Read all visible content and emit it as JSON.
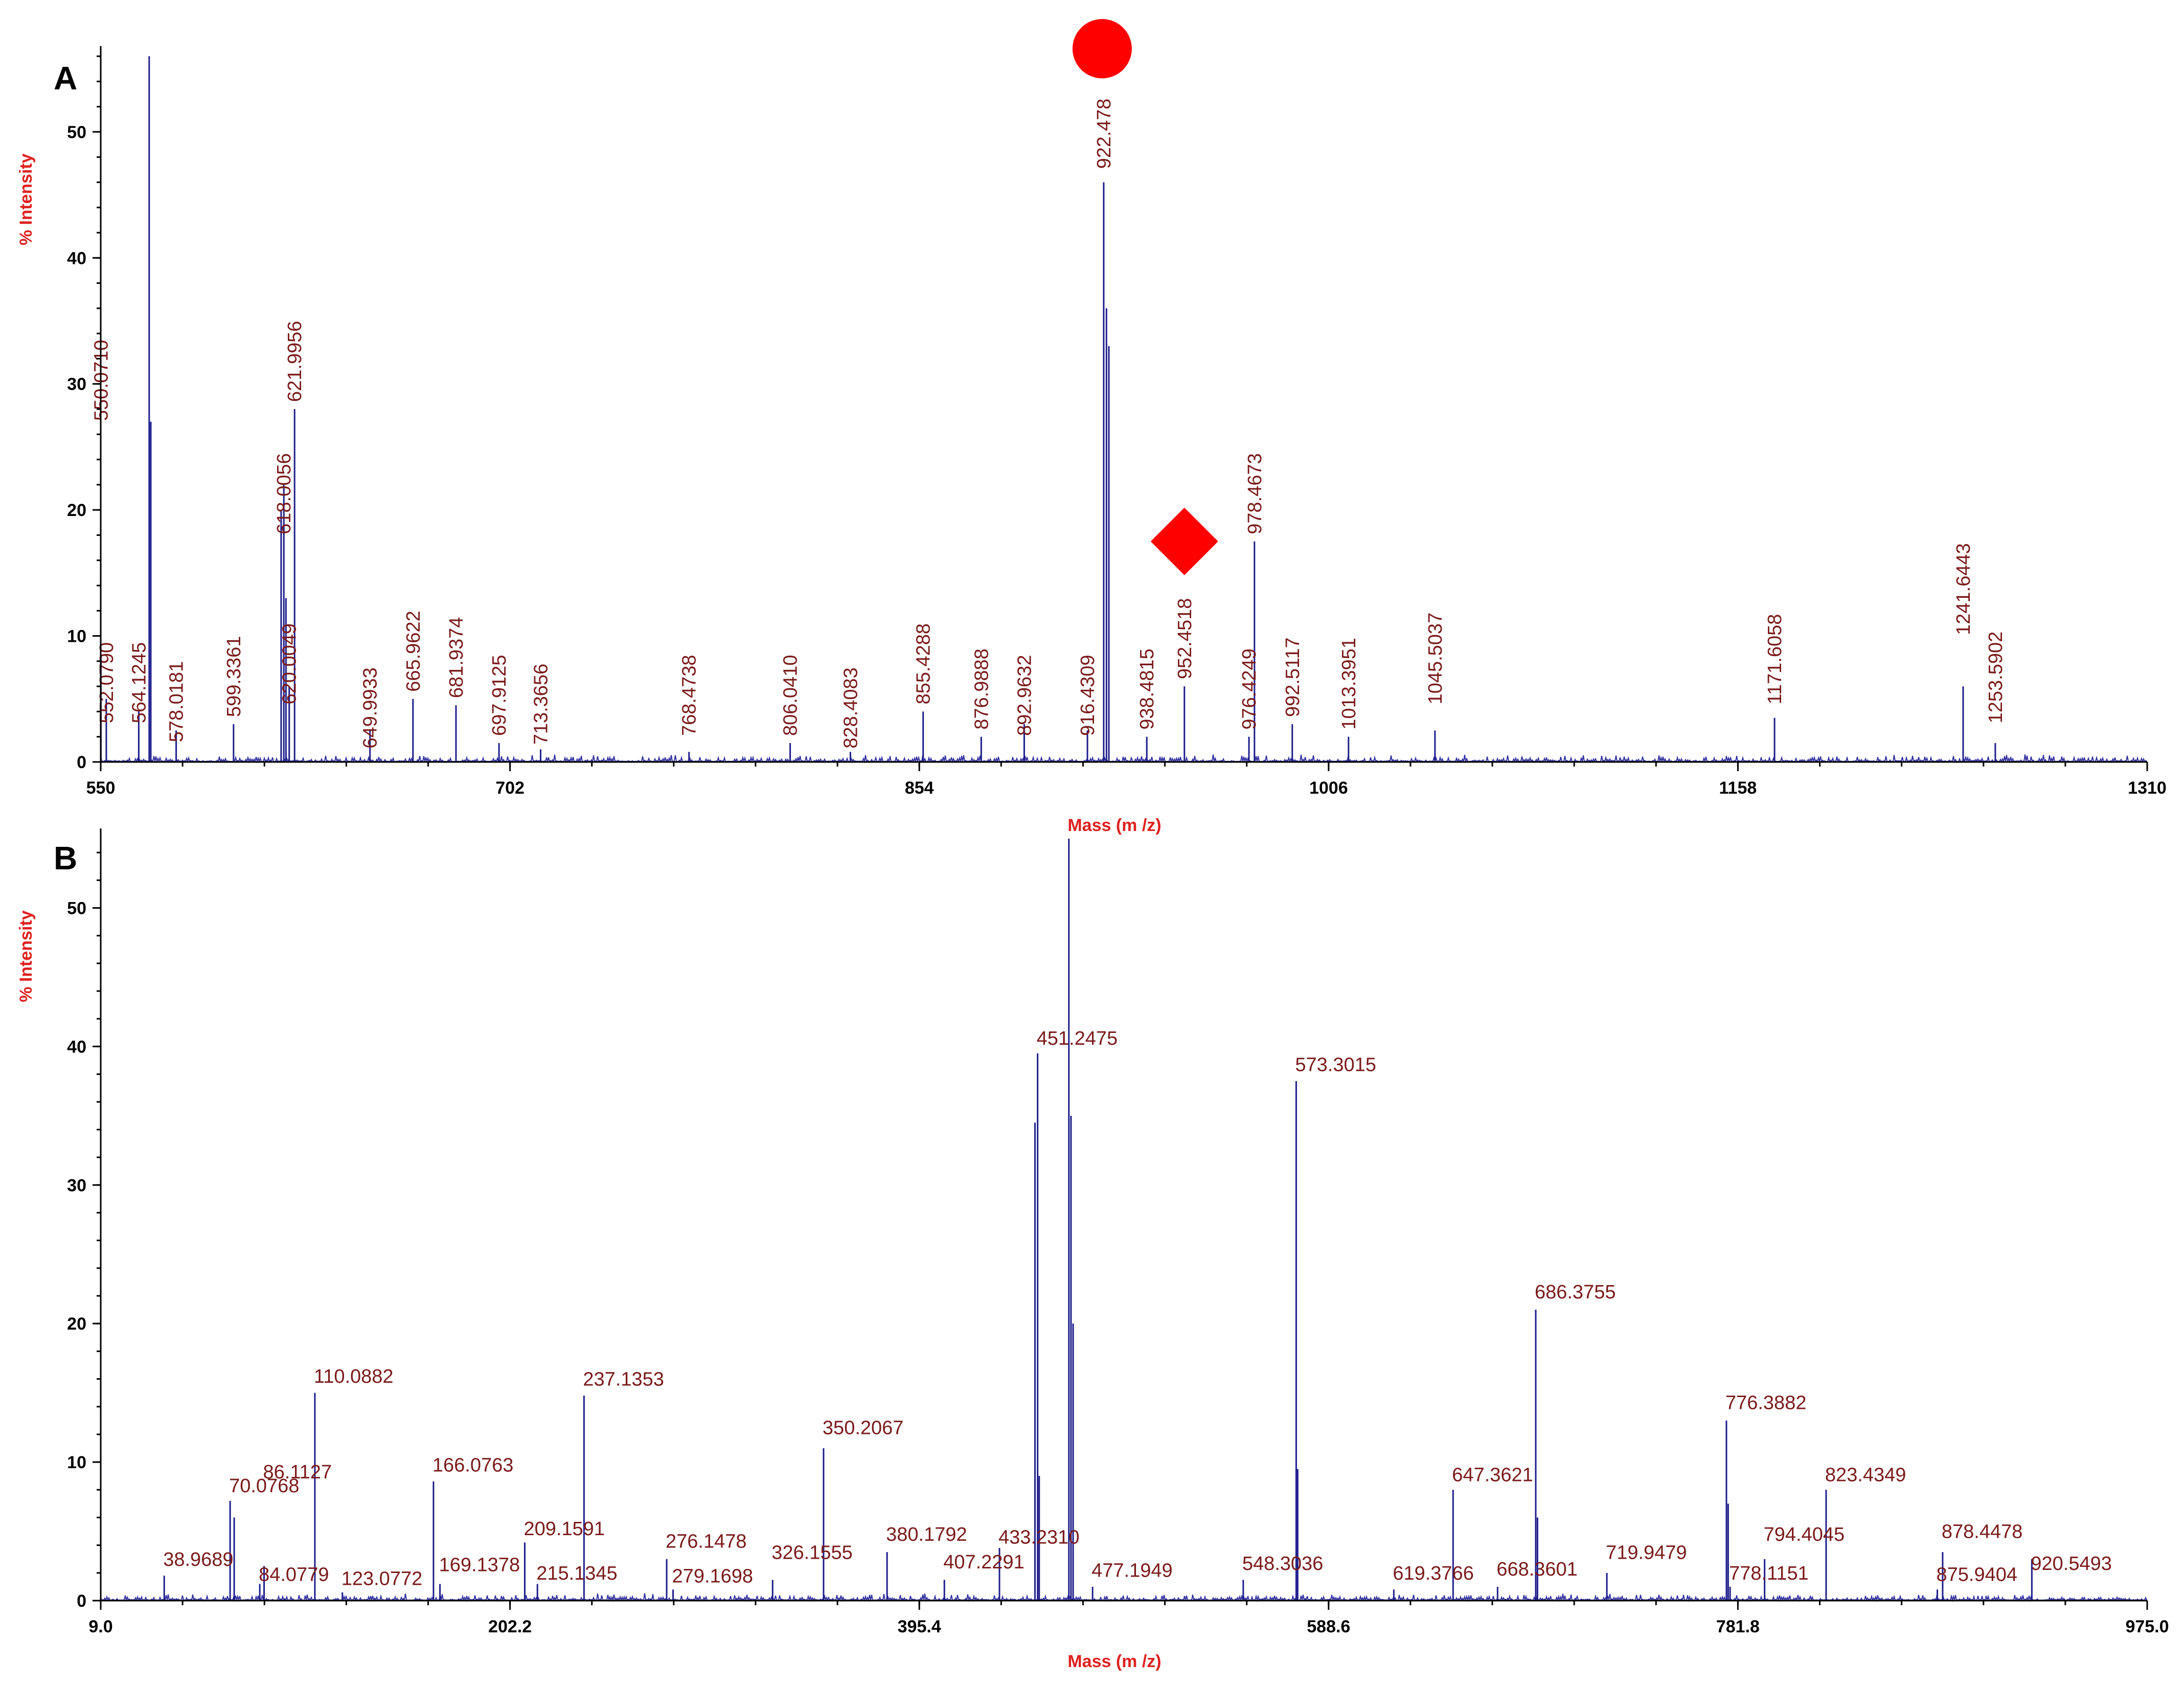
{
  "chart_data": [
    {
      "type": "line",
      "panel": "A",
      "xlabel": "Mass (m /z)",
      "ylabel": "% Intensity",
      "xlim": [
        550,
        1310
      ],
      "ylim": [
        0,
        56
      ],
      "xticks": [
        "550",
        "702",
        "854",
        "1006",
        "1158",
        "1310"
      ],
      "yticks": [
        "0",
        "10",
        "20",
        "30",
        "40",
        "50"
      ],
      "label_orientation": "vertical",
      "markers": [
        {
          "shape": "circle",
          "color": "#ff0000",
          "at_mz": 922.478,
          "y": 56.6
        },
        {
          "shape": "diamond",
          "color": "#ff0000",
          "at_mz": 952.4518,
          "y": 17.5
        }
      ],
      "peaks": [
        {
          "mz": 550.071,
          "y": 8.5,
          "label": "550.0710",
          "label_y": 26.5
        },
        {
          "mz": 552.079,
          "y": 5.0,
          "label": "552.0790",
          "label_y": 2.5
        },
        {
          "mz": 568.0,
          "y": 56.0,
          "label": null
        },
        {
          "mz": 568.6,
          "y": 27.0,
          "label": null
        },
        {
          "mz": 564.1245,
          "y": 4.0,
          "label": "564.1245",
          "label_y": 2.5
        },
        {
          "mz": 578.0181,
          "y": 2.5,
          "label": "578.0181",
          "label_y": 1.0
        },
        {
          "mz": 599.3361,
          "y": 3.0,
          "label": "599.3361",
          "label_y": 3.0
        },
        {
          "mz": 617.0,
          "y": 20.0,
          "label": null
        },
        {
          "mz": 618.0056,
          "y": 22.0,
          "label": "618.0056",
          "label_y": 17.5
        },
        {
          "mz": 618.8,
          "y": 13.0,
          "label": null
        },
        {
          "mz": 620.0049,
          "y": 6.0,
          "label": "620.0049",
          "label_y": 4.0
        },
        {
          "mz": 621.9956,
          "y": 28.0,
          "label": "621.9956",
          "label_y": 28.0
        },
        {
          "mz": 649.9933,
          "y": 2.5,
          "label": "649.9933",
          "label_y": 0.5
        },
        {
          "mz": 665.9622,
          "y": 5.0,
          "label": "665.9622",
          "label_y": 5.0
        },
        {
          "mz": 681.9374,
          "y": 4.5,
          "label": "681.9374",
          "label_y": 4.5
        },
        {
          "mz": 697.9125,
          "y": 1.5,
          "label": "697.9125",
          "label_y": 1.5
        },
        {
          "mz": 713.3656,
          "y": 1.0,
          "label": "713.3656",
          "label_y": 0.8
        },
        {
          "mz": 768.4738,
          "y": 0.8,
          "label": "768.4738",
          "label_y": 1.5
        },
        {
          "mz": 806.041,
          "y": 1.5,
          "label": "806.0410",
          "label_y": 1.5
        },
        {
          "mz": 828.4083,
          "y": 0.8,
          "label": "828.4083",
          "label_y": 0.5
        },
        {
          "mz": 855.4288,
          "y": 4.0,
          "label": "855.4288",
          "label_y": 4.0
        },
        {
          "mz": 876.9888,
          "y": 2.0,
          "label": "876.9888",
          "label_y": 2.0
        },
        {
          "mz": 892.9632,
          "y": 3.0,
          "label": "892.9632",
          "label_y": 1.5
        },
        {
          "mz": 916.4309,
          "y": 2.5,
          "label": "916.4309",
          "label_y": 1.5
        },
        {
          "mz": 922.478,
          "y": 46.0,
          "label": "922.478",
          "label_y": 46.5
        },
        {
          "mz": 923.5,
          "y": 36.0,
          "label": null
        },
        {
          "mz": 924.4,
          "y": 33.0,
          "label": null
        },
        {
          "mz": 938.4815,
          "y": 2.0,
          "label": "938.4815",
          "label_y": 2.0
        },
        {
          "mz": 952.4518,
          "y": 6.0,
          "label": "952.4518",
          "label_y": 6.0
        },
        {
          "mz": 976.4249,
          "y": 2.0,
          "label": "976.4249",
          "label_y": 2.0
        },
        {
          "mz": 978.4673,
          "y": 17.5,
          "label": "978.4673",
          "label_y": 17.5
        },
        {
          "mz": 992.5117,
          "y": 3.0,
          "label": "992.5117",
          "label_y": 3.0
        },
        {
          "mz": 1013.3951,
          "y": 2.0,
          "label": "1013.3951",
          "label_y": 2.0
        },
        {
          "mz": 1045.5037,
          "y": 2.5,
          "label": "1045.5037",
          "label_y": 4.0
        },
        {
          "mz": 1171.6058,
          "y": 3.5,
          "label": "1171.6058",
          "label_y": 4.0
        },
        {
          "mz": 1241.6443,
          "y": 6.0,
          "label": "1241.6443",
          "label_y": 9.5
        },
        {
          "mz": 1253.5902,
          "y": 1.5,
          "label": "1253.5902",
          "label_y": 2.5
        }
      ]
    },
    {
      "type": "line",
      "panel": "B",
      "xlabel": "Mass (m /z)",
      "ylabel": "% Intensity",
      "xlim": [
        9.0,
        975.0
      ],
      "ylim": [
        0,
        55
      ],
      "xticks": [
        "9.0",
        "202.2",
        "395.4",
        "588.6",
        "781.8",
        "975.0"
      ],
      "yticks": [
        "0",
        "10",
        "20",
        "30",
        "40",
        "50"
      ],
      "label_orientation": "horizontal",
      "peaks": [
        {
          "mz": 38.9689,
          "y": 1.8,
          "label": "38.9689",
          "label_y": 2.0
        },
        {
          "mz": 70.0768,
          "y": 7.2,
          "label": "70.0768",
          "label_y": 7.3
        },
        {
          "mz": 72.0,
          "y": 6.0,
          "label": null
        },
        {
          "mz": 84.0779,
          "y": 1.2,
          "label": "84.0779",
          "label_y": 0.9
        },
        {
          "mz": 86.1127,
          "y": 2.5,
          "label": "86.1127",
          "label_y": 8.3
        },
        {
          "mz": 110.0882,
          "y": 15.0,
          "label": "110.0882",
          "label_y": 15.2
        },
        {
          "mz": 123.0772,
          "y": 0.6,
          "label": "123.0772",
          "label_y": 0.6
        },
        {
          "mz": 166.0763,
          "y": 8.6,
          "label": "166.0763",
          "label_y": 8.8
        },
        {
          "mz": 169.1378,
          "y": 1.2,
          "label": "169.1378",
          "label_y": 1.6
        },
        {
          "mz": 209.1591,
          "y": 4.2,
          "label": "209.1591",
          "label_y": 4.2
        },
        {
          "mz": 215.1345,
          "y": 1.2,
          "label": "215.1345",
          "label_y": 1.0
        },
        {
          "mz": 237.1353,
          "y": 14.8,
          "label": "237.1353",
          "label_y": 15.0
        },
        {
          "mz": 276.1478,
          "y": 3.0,
          "label": "276.1478",
          "label_y": 3.3
        },
        {
          "mz": 279.1698,
          "y": 0.8,
          "label": "279.1698",
          "label_y": 0.8
        },
        {
          "mz": 326.1555,
          "y": 1.5,
          "label": "326.1555",
          "label_y": 2.5
        },
        {
          "mz": 350.2067,
          "y": 11.0,
          "label": "350.2067",
          "label_y": 11.5
        },
        {
          "mz": 380.1792,
          "y": 3.5,
          "label": "380.1792",
          "label_y": 3.8
        },
        {
          "mz": 407.2291,
          "y": 1.5,
          "label": "407.2291",
          "label_y": 1.8
        },
        {
          "mz": 433.231,
          "y": 3.8,
          "label": "433.2310",
          "label_y": 3.6
        },
        {
          "mz": 450.0,
          "y": 34.5,
          "label": null
        },
        {
          "mz": 451.2475,
          "y": 39.5,
          "label": "451.2475",
          "label_y": 39.6
        },
        {
          "mz": 452.0,
          "y": 9.0,
          "label": null
        },
        {
          "mz": 466.0,
          "y": 55.0,
          "label": null
        },
        {
          "mz": 467.0,
          "y": 35.0,
          "label": null
        },
        {
          "mz": 468.0,
          "y": 20.0,
          "label": null
        },
        {
          "mz": 477.1949,
          "y": 1.0,
          "label": "477.1949",
          "label_y": 1.2
        },
        {
          "mz": 548.3036,
          "y": 1.5,
          "label": "548.3036",
          "label_y": 1.7
        },
        {
          "mz": 573.3015,
          "y": 37.5,
          "label": "573.3015",
          "label_y": 37.7
        },
        {
          "mz": 574.0,
          "y": 9.5,
          "label": null
        },
        {
          "mz": 619.3766,
          "y": 0.8,
          "label": "619.3766",
          "label_y": 1.0
        },
        {
          "mz": 647.3621,
          "y": 8.0,
          "label": "647.3621",
          "label_y": 8.1
        },
        {
          "mz": 668.3601,
          "y": 1.0,
          "label": "668.3601",
          "label_y": 1.3
        },
        {
          "mz": 686.3755,
          "y": 21.0,
          "label": "686.3755",
          "label_y": 21.3
        },
        {
          "mz": 687.2,
          "y": 6.0,
          "label": null
        },
        {
          "mz": 719.9479,
          "y": 2.0,
          "label": "719.9479",
          "label_y": 2.5
        },
        {
          "mz": 776.3882,
          "y": 13.0,
          "label": "776.3882",
          "label_y": 13.3
        },
        {
          "mz": 777.2,
          "y": 7.0,
          "label": null
        },
        {
          "mz": 778.1151,
          "y": 1.0,
          "label": "778.1151",
          "label_y": 1.0
        },
        {
          "mz": 794.4045,
          "y": 3.0,
          "label": "794.4045",
          "label_y": 3.8
        },
        {
          "mz": 823.4349,
          "y": 8.0,
          "label": "823.4349",
          "label_y": 8.1
        },
        {
          "mz": 875.9404,
          "y": 0.8,
          "label": "875.9404",
          "label_y": 0.9
        },
        {
          "mz": 878.4478,
          "y": 3.5,
          "label": "878.4478",
          "label_y": 4.0
        },
        {
          "mz": 920.5493,
          "y": 3.0,
          "label": "920.5493",
          "label_y": 1.7
        }
      ]
    }
  ],
  "panels": [
    "A",
    "B"
  ],
  "colors": {
    "axis_title": "#e02020",
    "peak": "#1e1e8c",
    "label": "#7a1a1a",
    "marker": "#ff0000"
  }
}
